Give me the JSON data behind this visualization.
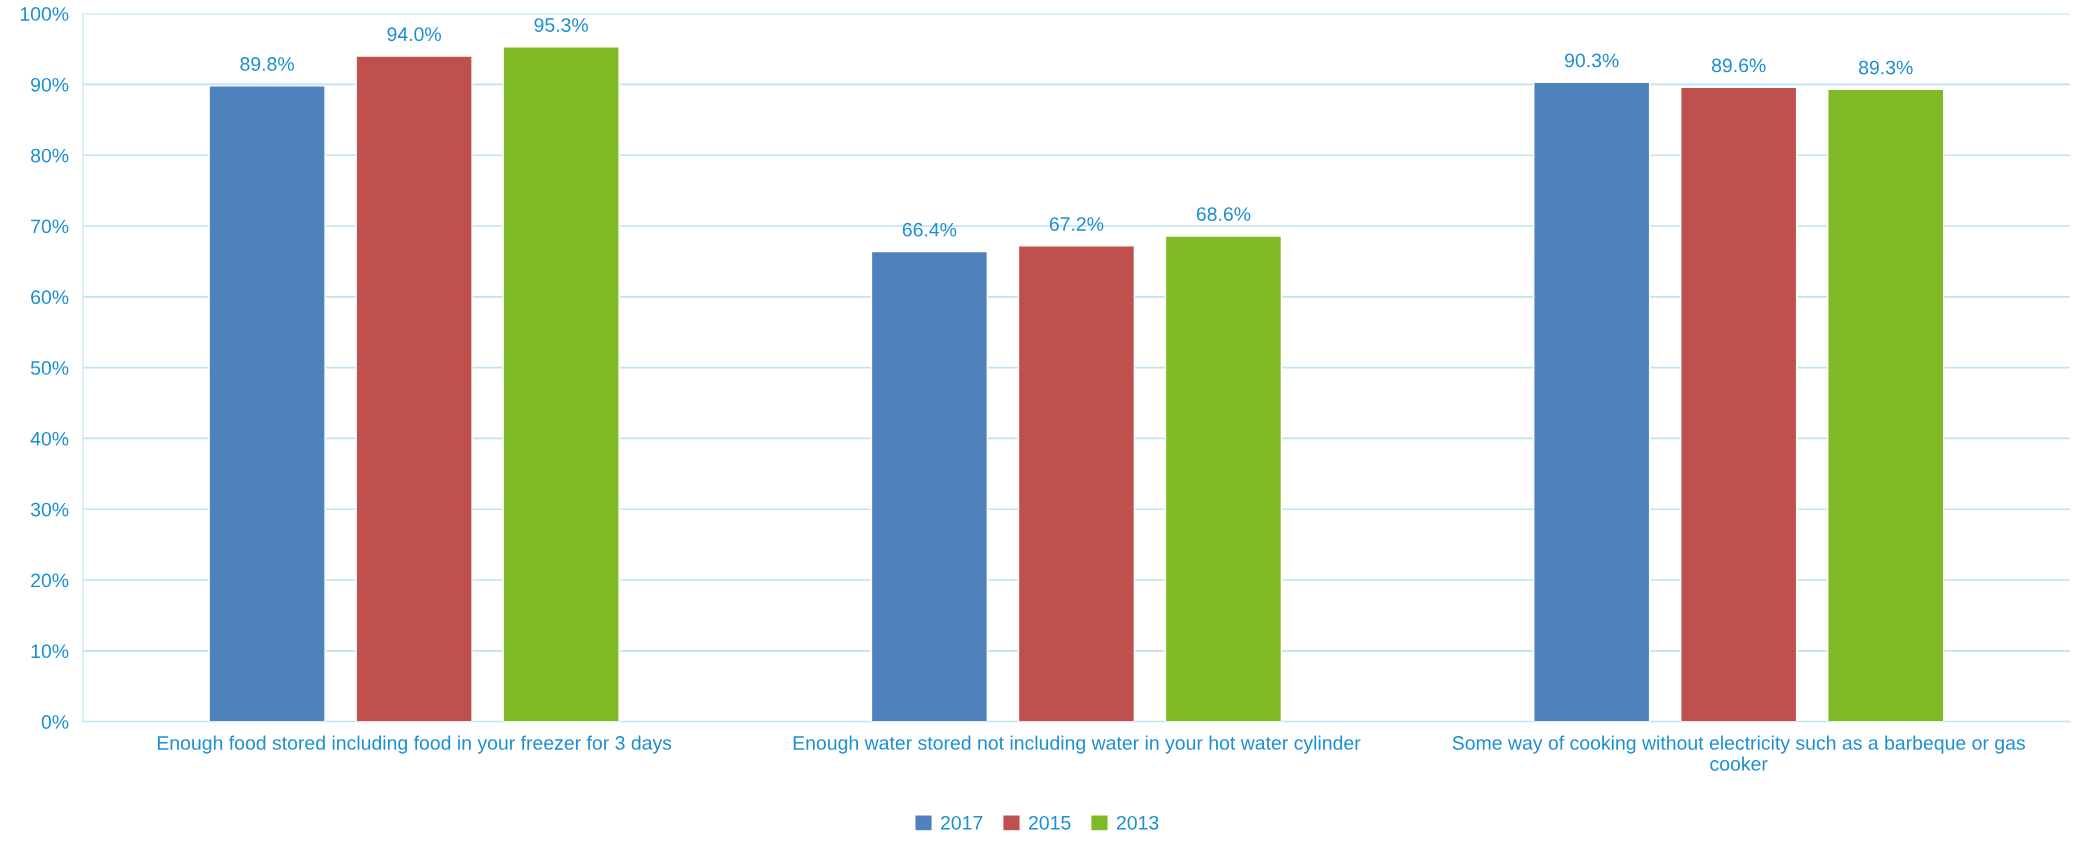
{
  "chart_data": {
    "type": "bar",
    "categories": [
      "Enough food stored including food in your freezer for 3 days",
      "Enough water stored not including water in your hot water cylinder",
      "Some way of cooking without electricity such as a barbeque or gas cooker"
    ],
    "series": [
      {
        "name": "2017",
        "color": "#4f81bd",
        "values": [
          89.8,
          66.4,
          90.3
        ],
        "value_labels": [
          "89.8%",
          "66.4%",
          "90.3%"
        ]
      },
      {
        "name": "2015",
        "color": "#c0504d",
        "values": [
          94.0,
          67.2,
          89.6
        ],
        "value_labels": [
          "94.0%",
          "67.2%",
          "89.6%"
        ]
      },
      {
        "name": "2013",
        "color": "#7fba26",
        "values": [
          95.3,
          68.6,
          89.3
        ],
        "value_labels": [
          "95.3%",
          "68.6%",
          "89.3%"
        ]
      }
    ],
    "ylim": [
      0,
      100
    ],
    "yticks": [
      {
        "value": 0,
        "label": "0%"
      },
      {
        "value": 10,
        "label": "10%"
      },
      {
        "value": 20,
        "label": "20%"
      },
      {
        "value": 30,
        "label": "30%"
      },
      {
        "value": 40,
        "label": "40%"
      },
      {
        "value": 50,
        "label": "50%"
      },
      {
        "value": 60,
        "label": "60%"
      },
      {
        "value": 70,
        "label": "70%"
      },
      {
        "value": 80,
        "label": "80%"
      },
      {
        "value": 90,
        "label": "90%"
      },
      {
        "value": 100,
        "label": "100%"
      }
    ],
    "grid": "y",
    "legend": "bottom"
  }
}
